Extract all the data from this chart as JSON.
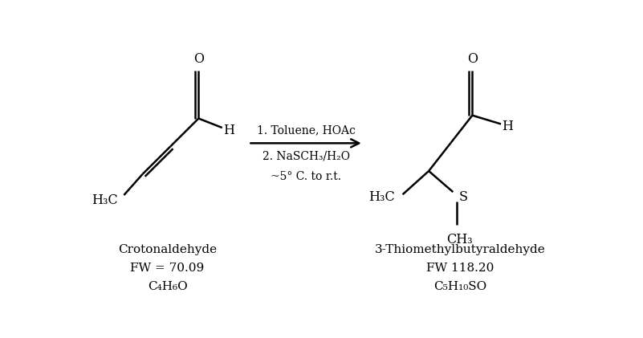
{
  "figure_width": 8.01,
  "figure_height": 4.21,
  "dpi": 100,
  "background_color": "#ffffff",
  "line_color": "#000000",
  "line_width": 1.8,
  "font_size": 10.5,
  "arrow_text_line1": "1. Toluene, HOAc",
  "arrow_text_line2": "2. NaSCH₃/H₂O",
  "arrow_text_line3": "~5° C. to r.t.",
  "label_left_name": "Crotonaldehyde",
  "label_left_fw": "FW = 70.09",
  "label_left_formula": "C₄H₆O",
  "label_right_name": "3-Thiomethylbutyraldehyde",
  "label_right_fw": "FW 118.20",
  "label_right_formula": "C₅H₁₀SO"
}
